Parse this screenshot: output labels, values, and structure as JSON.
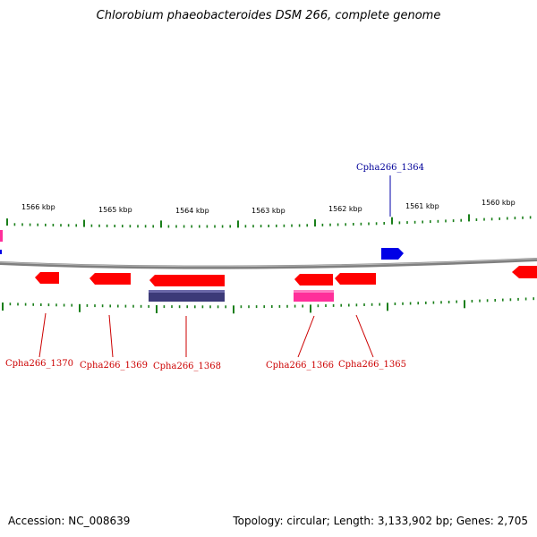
{
  "title": "Chlorobium phaeobacteroides DSM 266, complete genome",
  "footer": {
    "accession": "Accession: NC_008639",
    "summary": "Topology: circular; Length: 3,133,902 bp; Genes: 2,705"
  },
  "colors": {
    "backbone": "#7f7f7f",
    "tick": "#1a7f1a",
    "gene_red": "#ff0000",
    "gene_pink": "#ff2f9a",
    "gene_blue": "#0000e6",
    "gene_purple": "#3c3a78",
    "label_red": "#cc0000",
    "label_blue": "#000099"
  },
  "scale_labels": [
    "1566 kbp",
    "1565 kbp",
    "1564 kbp",
    "1563 kbp",
    "1562 kbp",
    "1561 kbp",
    "1560 kbp"
  ],
  "gene_labels": {
    "top": [
      "Cpha266_1364"
    ],
    "bottom": [
      "Cpha266_1370",
      "Cpha266_1369",
      "Cpha266_1368",
      "Cpha266_1366",
      "Cpha266_1365"
    ]
  }
}
